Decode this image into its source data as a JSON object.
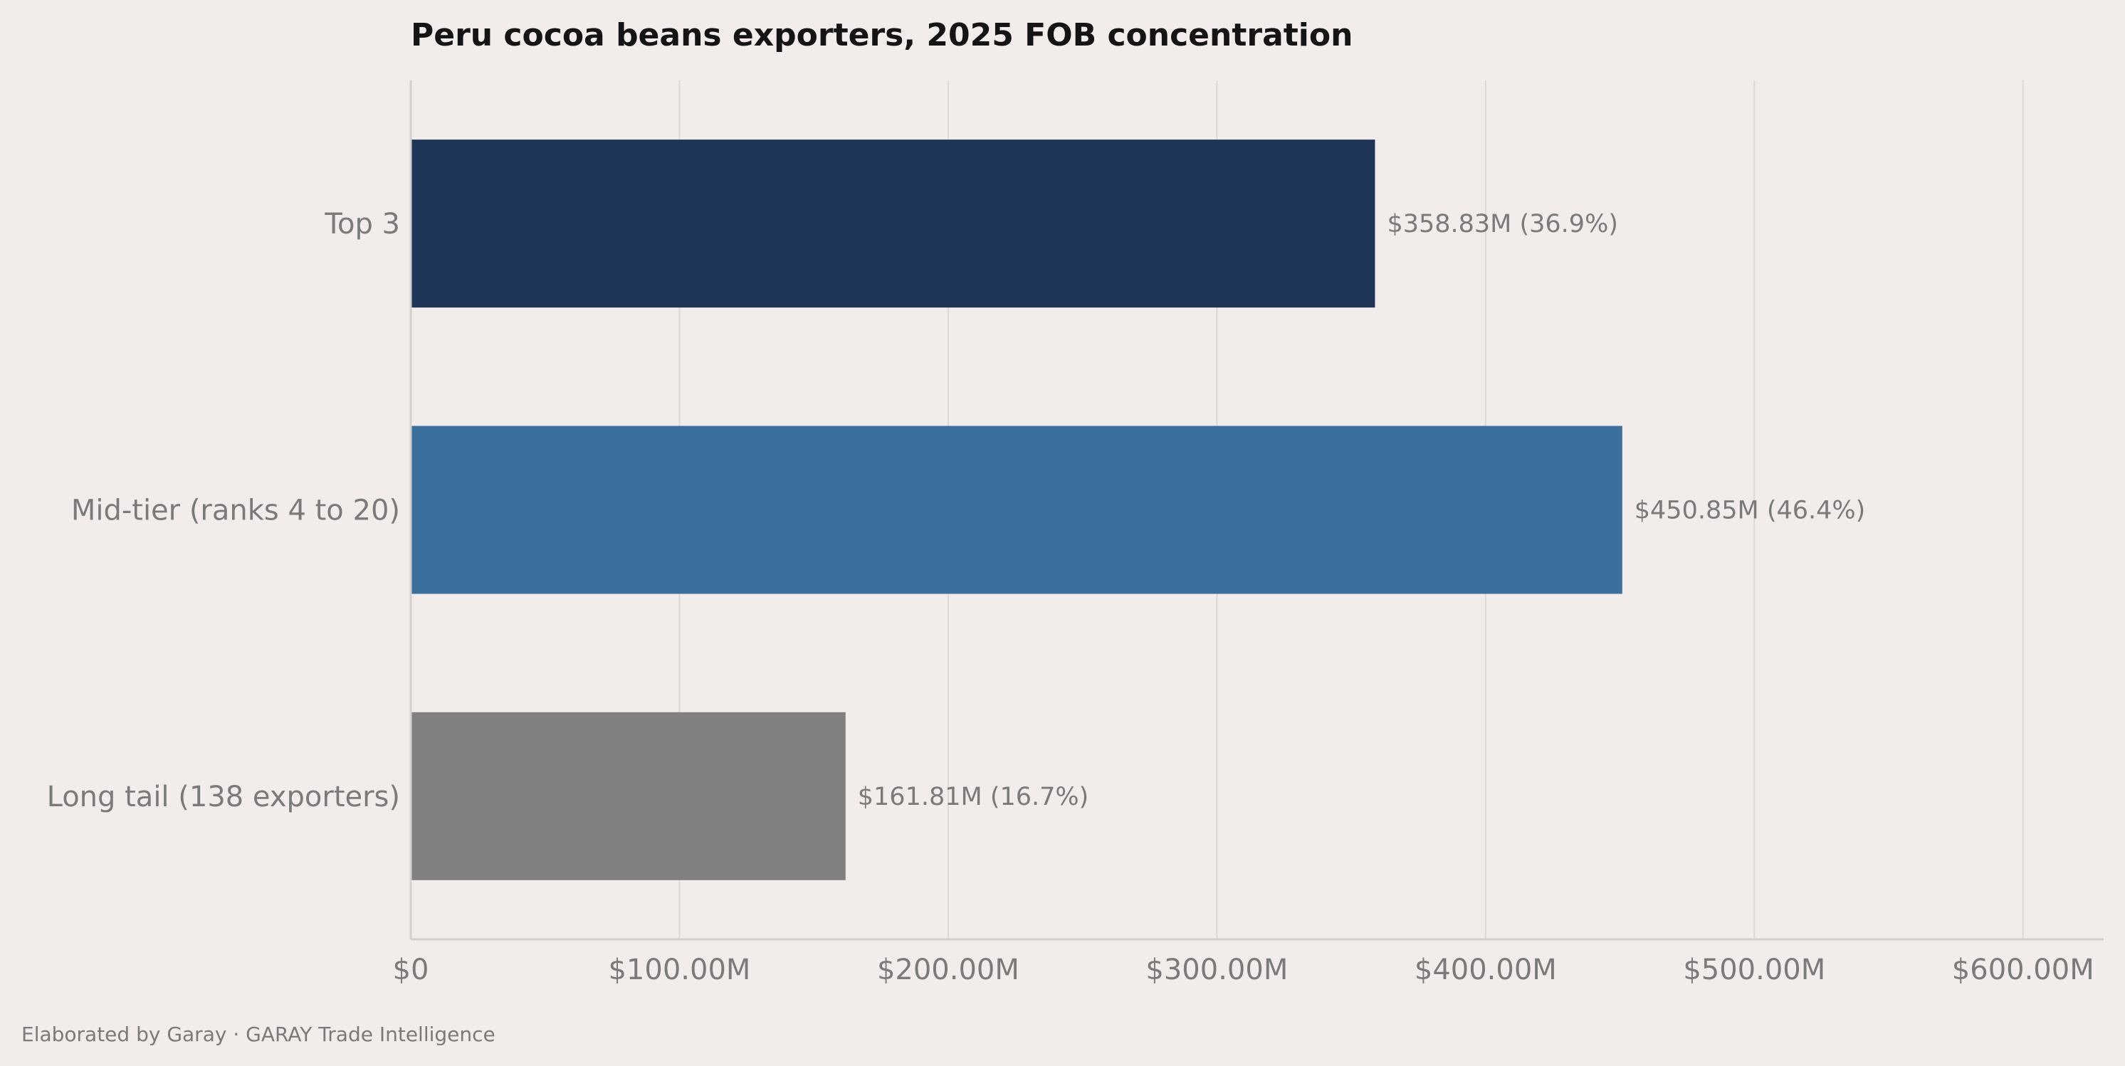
{
  "chart_data": {
    "type": "bar",
    "orientation": "horizontal",
    "title": "Peru cocoa beans exporters, 2025 FOB concentration",
    "categories": [
      "Top 3",
      "Mid-tier (ranks 4 to 20)",
      "Long tail (138 exporters)"
    ],
    "values": [
      358.83,
      450.85,
      161.81
    ],
    "value_labels": [
      "$358.83M  (36.9%)",
      "$450.85M  (46.4%)",
      "$161.81M  (16.7%)"
    ],
    "bar_colors": [
      "#1e3557",
      "#3b6f9c",
      "#808080"
    ],
    "xlim": [
      0,
      630
    ],
    "x_ticks": [
      0,
      100,
      200,
      300,
      400,
      500,
      600
    ],
    "x_tick_labels": [
      "$0",
      "$100.00M",
      "$200.00M",
      "$300.00M",
      "$400.00M",
      "$500.00M",
      "$600.00M"
    ],
    "grid": "vertical",
    "xlabel": "",
    "ylabel": ""
  },
  "footer": {
    "credit": "Elaborated by Garay  ·  GARAY Trade Intelligence"
  },
  "colors": {
    "background": "#f2edea",
    "title": "#141414",
    "muted_text": "#7a7a7a"
  }
}
